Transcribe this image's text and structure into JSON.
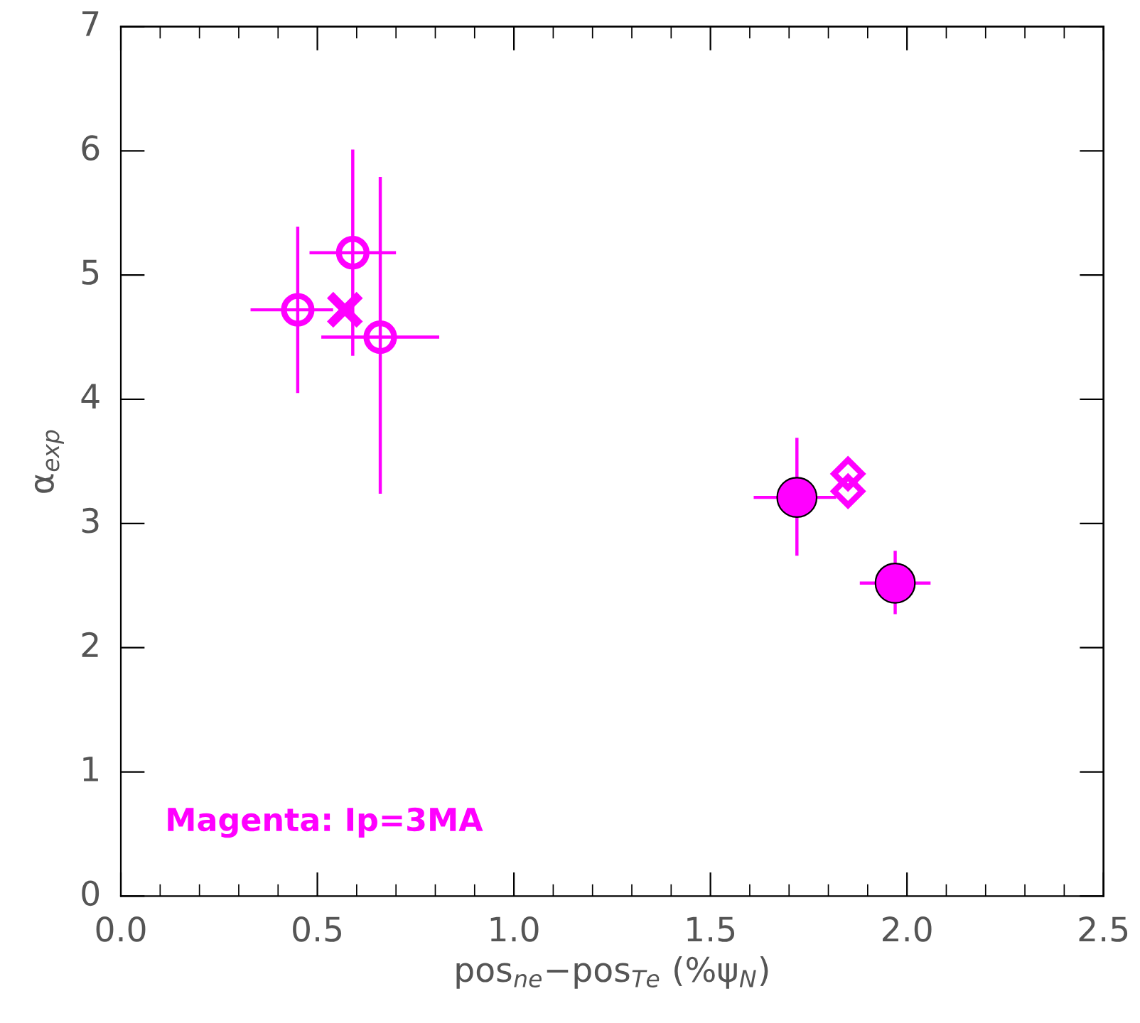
{
  "chart_data": {
    "type": "scatter",
    "xlabel": "pos$_{ne}$−pos$_{Te}$ (%ψ$_{N}$)",
    "ylabel": "α$_{exp}$",
    "annotations": [
      "Magenta: Ip=3MA"
    ],
    "xlim": [
      0,
      2.5
    ],
    "xticks": [
      {
        "value": 0,
        "label": "0.0"
      },
      0.5,
      {
        "value": 1,
        "label": "1.0"
      },
      1.5,
      {
        "value": 2,
        "label": "2.0"
      },
      2.5
    ],
    "ylim": [
      0,
      7
    ],
    "yticks": [
      0,
      1,
      2,
      3,
      4,
      5,
      6,
      7
    ],
    "grid": false,
    "legend": false,
    "series": [
      {
        "color": "#ff00ff",
        "marker": "circle",
        "x": [
          0.45,
          0.59,
          0.66
        ],
        "values": [
          4.72,
          5.18,
          4.5
        ],
        "errors": [
          [
            4.05,
            5.39
          ],
          [
            4.35,
            6.01
          ],
          [
            3.24,
            5.79
          ]
        ],
        "xerrors": [
          [
            0.33,
            0.54
          ],
          [
            0.48,
            0.7
          ],
          [
            0.51,
            0.81
          ]
        ]
      },
      {
        "color": "#ff00ff",
        "marker": "cross",
        "x": [
          0.57
        ],
        "values": [
          4.72
        ]
      },
      {
        "color": "#ff00ff",
        "marker": "diamond",
        "x": [
          1.85,
          1.85
        ],
        "values": [
          3.4,
          3.26
        ]
      },
      {
        "color": "#ff00ff",
        "marker": "circle",
        "x": [
          1.72,
          1.97
        ],
        "values": [
          3.21,
          2.52
        ],
        "errors": [
          [
            2.74,
            3.69
          ],
          [
            2.27,
            2.78
          ]
        ],
        "xerrors": [
          [
            1.61,
            1.82
          ],
          [
            1.88,
            2.06
          ]
        ]
      }
    ]
  }
}
